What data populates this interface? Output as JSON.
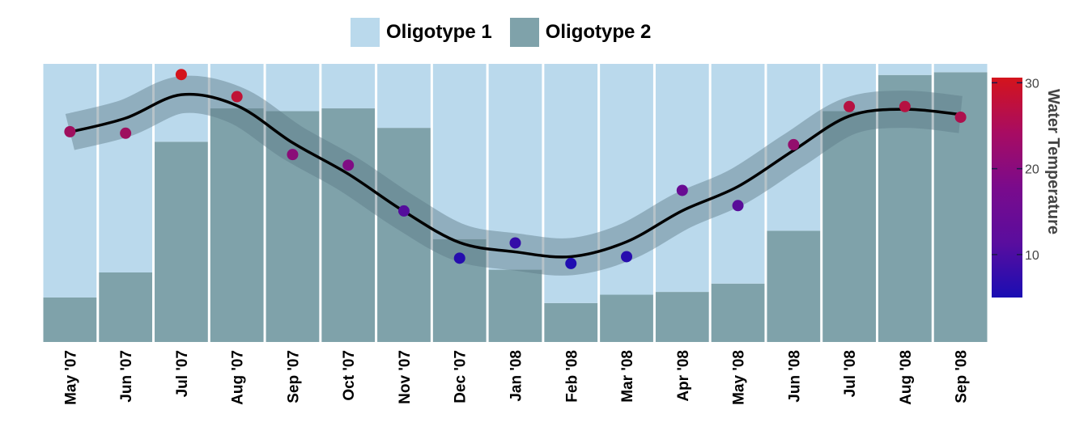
{
  "chart_data": {
    "type": "bar",
    "stacked": true,
    "categories": [
      "May '07",
      "Jun '07",
      "Jul '07",
      "Aug '07",
      "Sep '07",
      "Oct '07",
      "Nov '07",
      "Dec '07",
      "Jan '08",
      "Feb '08",
      "Mar '08",
      "Apr '08",
      "May '08",
      "Jun '08",
      "Jul '08",
      "Aug '08",
      "Sep '08"
    ],
    "series": [
      {
        "name": "Oligotype 1",
        "color": "#bad9ec",
        "values": [
          0.84,
          0.75,
          0.28,
          0.16,
          0.17,
          0.16,
          0.23,
          0.63,
          0.74,
          0.86,
          0.83,
          0.82,
          0.79,
          0.6,
          0.17,
          0.04,
          0.03
        ]
      },
      {
        "name": "Oligotype 2",
        "color": "#7fa2aa",
        "values": [
          0.16,
          0.25,
          0.72,
          0.84,
          0.83,
          0.84,
          0.77,
          0.37,
          0.26,
          0.14,
          0.17,
          0.18,
          0.21,
          0.4,
          0.83,
          0.96,
          0.97
        ]
      }
    ],
    "overlay": {
      "type": "scatter",
      "name": "Water Temperature",
      "values": [
        23.1,
        22.9,
        30.6,
        27.7,
        20.1,
        18.7,
        12.7,
        6.5,
        8.5,
        5.8,
        6.7,
        15.4,
        13.4,
        21.4,
        26.4,
        26.4,
        25.0
      ],
      "smooth_fit": true,
      "ylim": [
        -4.5,
        32
      ]
    },
    "colorbar": {
      "title": "Water Temperature",
      "ticks": [
        10,
        20,
        30
      ],
      "range": [
        5,
        30.6
      ],
      "low_color": "#1a0db3",
      "mid_color": "#7a0b8c",
      "high_color": "#d4141c"
    },
    "legend_position": "top-center",
    "grid": false,
    "ylim": [
      0,
      1
    ]
  }
}
